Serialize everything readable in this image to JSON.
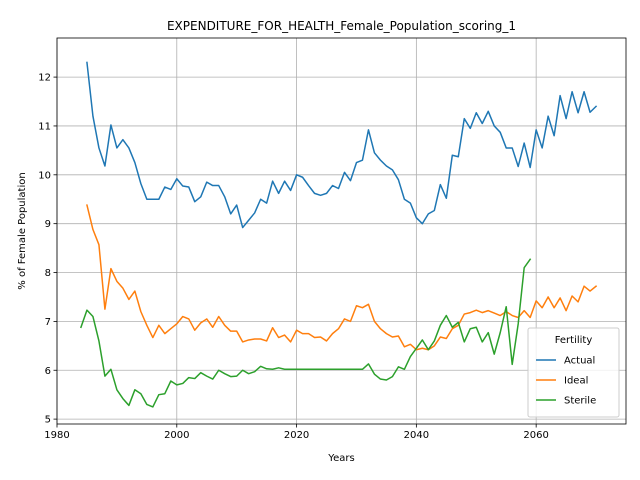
{
  "chart_data": {
    "type": "line",
    "title": "EXPENDITURE_FOR_HEALTH_Female_Population_scoring_1",
    "xlabel": "Years",
    "ylabel": "% of Female Population",
    "xlim": [
      1980,
      2075
    ],
    "ylim": [
      4.9,
      12.8
    ],
    "xticks": [
      1980,
      2000,
      2020,
      2040,
      2060
    ],
    "yticks": [
      5,
      6,
      7,
      8,
      9,
      10,
      11,
      12
    ],
    "grid": true,
    "legend": {
      "title": "Fertility",
      "placement": "lower-right"
    },
    "series": [
      {
        "name": "Actual",
        "color": "#1f77b4",
        "x": [
          1985,
          1986,
          1987,
          1988,
          1989,
          1990,
          1991,
          1992,
          1993,
          1994,
          1995,
          1996,
          1997,
          1998,
          1999,
          2000,
          2001,
          2002,
          2003,
          2004,
          2005,
          2006,
          2007,
          2008,
          2009,
          2010,
          2011,
          2012,
          2013,
          2014,
          2015,
          2016,
          2017,
          2018,
          2019,
          2020,
          2021,
          2022,
          2023,
          2024,
          2025,
          2026,
          2027,
          2028,
          2029,
          2030,
          2031,
          2032,
          2033,
          2034,
          2035,
          2036,
          2037,
          2038,
          2039,
          2040,
          2041,
          2042,
          2043,
          2044,
          2045,
          2046,
          2047,
          2048,
          2049,
          2050,
          2051,
          2052,
          2053,
          2054,
          2055,
          2056,
          2057,
          2058,
          2059,
          2060,
          2061,
          2062,
          2063,
          2064,
          2065,
          2066,
          2067,
          2068,
          2069,
          2070
        ],
        "values": [
          12.3,
          11.2,
          10.55,
          10.18,
          11.02,
          10.55,
          10.72,
          10.55,
          10.25,
          9.82,
          9.5,
          9.5,
          9.5,
          9.75,
          9.7,
          9.92,
          9.77,
          9.75,
          9.45,
          9.55,
          9.85,
          9.78,
          9.78,
          9.55,
          9.2,
          9.38,
          8.92,
          9.07,
          9.22,
          9.5,
          9.42,
          9.87,
          9.62,
          9.87,
          9.68,
          10.0,
          9.95,
          9.78,
          9.62,
          9.58,
          9.62,
          9.78,
          9.72,
          10.05,
          9.88,
          10.25,
          10.3,
          10.92,
          10.45,
          10.3,
          10.18,
          10.1,
          9.9,
          9.5,
          9.42,
          9.12,
          9.0,
          9.2,
          9.27,
          9.8,
          9.52,
          10.4,
          10.37,
          11.15,
          10.95,
          11.27,
          11.05,
          11.3,
          11.0,
          10.87,
          10.55,
          10.55,
          10.17,
          10.65,
          10.15,
          10.92,
          10.55,
          11.2,
          10.8,
          11.62,
          11.15,
          11.7,
          11.27,
          11.7,
          11.28,
          11.4
        ]
      },
      {
        "name": "Ideal",
        "color": "#ff7f0e",
        "x": [
          1985,
          1986,
          1987,
          1988,
          1989,
          1990,
          1991,
          1992,
          1993,
          1994,
          1995,
          1996,
          1997,
          1998,
          1999,
          2000,
          2001,
          2002,
          2003,
          2004,
          2005,
          2006,
          2007,
          2008,
          2009,
          2010,
          2011,
          2012,
          2013,
          2014,
          2015,
          2016,
          2017,
          2018,
          2019,
          2020,
          2021,
          2022,
          2023,
          2024,
          2025,
          2026,
          2027,
          2028,
          2029,
          2030,
          2031,
          2032,
          2033,
          2034,
          2035,
          2036,
          2037,
          2038,
          2039,
          2040,
          2041,
          2042,
          2043,
          2044,
          2045,
          2046,
          2047,
          2048,
          2049,
          2050,
          2051,
          2052,
          2053,
          2054,
          2055,
          2056,
          2057,
          2058,
          2059,
          2060,
          2061,
          2062,
          2063,
          2064,
          2065,
          2066,
          2067,
          2068,
          2069,
          2070
        ],
        "values": [
          9.38,
          8.88,
          8.57,
          7.25,
          8.08,
          7.82,
          7.68,
          7.45,
          7.62,
          7.2,
          6.92,
          6.67,
          6.92,
          6.75,
          6.85,
          6.95,
          7.1,
          7.05,
          6.82,
          6.97,
          7.05,
          6.88,
          7.1,
          6.92,
          6.8,
          6.8,
          6.58,
          6.62,
          6.64,
          6.64,
          6.6,
          6.87,
          6.67,
          6.72,
          6.58,
          6.82,
          6.75,
          6.75,
          6.67,
          6.68,
          6.6,
          6.75,
          6.85,
          7.05,
          7.0,
          7.32,
          7.28,
          7.35,
          7.0,
          6.85,
          6.75,
          6.68,
          6.7,
          6.48,
          6.53,
          6.42,
          6.45,
          6.42,
          6.5,
          6.68,
          6.65,
          6.85,
          6.92,
          7.15,
          7.18,
          7.23,
          7.18,
          7.22,
          7.17,
          7.12,
          7.2,
          7.12,
          7.08,
          7.22,
          7.08,
          7.42,
          7.28,
          7.5,
          7.28,
          7.48,
          7.22,
          7.52,
          7.4,
          7.72,
          7.62,
          7.72
        ]
      },
      {
        "name": "Sterile",
        "color": "#2ca02c",
        "x": [
          1984,
          1985,
          1986,
          1987,
          1988,
          1989,
          1990,
          1991,
          1992,
          1993,
          1994,
          1995,
          1996,
          1997,
          1998,
          1999,
          2000,
          2001,
          2002,
          2003,
          2004,
          2005,
          2006,
          2007,
          2008,
          2009,
          2010,
          2011,
          2012,
          2013,
          2014,
          2015,
          2016,
          2017,
          2018,
          2019,
          2020,
          2021,
          2022,
          2023,
          2024,
          2025,
          2026,
          2027,
          2028,
          2029,
          2030,
          2031,
          2032,
          2033,
          2034,
          2035,
          2036,
          2037,
          2038,
          2039,
          2040,
          2041,
          2042,
          2043,
          2044,
          2045,
          2046,
          2047,
          2048,
          2049,
          2050,
          2051,
          2052,
          2053,
          2054,
          2055,
          2056,
          2057,
          2058,
          2059
        ],
        "values": [
          6.88,
          7.23,
          7.1,
          6.6,
          5.88,
          6.02,
          5.6,
          5.42,
          5.28,
          5.6,
          5.52,
          5.3,
          5.25,
          5.5,
          5.52,
          5.78,
          5.7,
          5.73,
          5.85,
          5.83,
          5.95,
          5.88,
          5.82,
          6.0,
          5.93,
          5.87,
          5.88,
          6.0,
          5.93,
          5.97,
          6.08,
          6.03,
          6.02,
          6.05,
          6.02,
          6.02,
          6.02,
          6.02,
          6.02,
          6.02,
          6.02,
          6.02,
          6.02,
          6.02,
          6.02,
          6.02,
          6.02,
          6.02,
          6.13,
          5.92,
          5.82,
          5.8,
          5.87,
          6.07,
          6.02,
          6.28,
          6.45,
          6.62,
          6.42,
          6.6,
          6.92,
          7.12,
          6.88,
          6.98,
          6.58,
          6.85,
          6.88,
          6.58,
          6.77,
          6.33,
          6.77,
          7.3,
          6.12,
          6.95,
          8.1,
          8.27
        ]
      }
    ]
  }
}
